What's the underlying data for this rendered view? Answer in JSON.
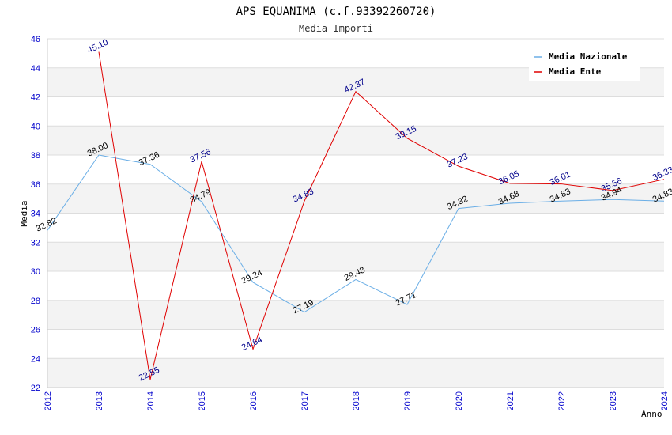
{
  "chart_data": {
    "type": "line",
    "title": "APS EQUANIMA (c.f.93392260720)",
    "subtitle": "Media Importi",
    "xlabel": "Anno",
    "ylabel": "Media",
    "x": [
      "2012",
      "2013",
      "2014",
      "2015",
      "2016",
      "2017",
      "2018",
      "2019",
      "2020",
      "2021",
      "2022",
      "2023",
      "2024"
    ],
    "ylim": [
      22,
      46
    ],
    "yticks": [
      22,
      24,
      26,
      28,
      30,
      32,
      34,
      36,
      38,
      40,
      42,
      44,
      46
    ],
    "grid": true,
    "legend_position": "top-right",
    "series": [
      {
        "name": "Media Nazionale",
        "color": "#6aaee6",
        "label_color": "#000000",
        "values": [
          32.82,
          38.0,
          37.36,
          34.79,
          29.24,
          27.19,
          29.43,
          27.71,
          34.32,
          34.68,
          34.83,
          34.94,
          34.83
        ],
        "labels": [
          "32.82",
          "38.00",
          "37.36",
          "34.79",
          "29.24",
          "27.19",
          "29.43",
          "27.71",
          "34.32",
          "34.68",
          "34.83",
          "34.94",
          "34.83"
        ]
      },
      {
        "name": "Media Ente",
        "color": "#e00000",
        "label_color": "#00008b",
        "values": [
          null,
          45.1,
          22.55,
          37.56,
          24.64,
          34.83,
          42.37,
          39.15,
          37.23,
          36.05,
          36.01,
          35.56,
          36.33
        ],
        "labels": [
          null,
          "45.10",
          "22.55",
          "37.56",
          "24.64",
          "34.83",
          "42.37",
          "39.15",
          "37.23",
          "36.05",
          "36.01",
          "35.56",
          "36.33"
        ]
      }
    ]
  }
}
